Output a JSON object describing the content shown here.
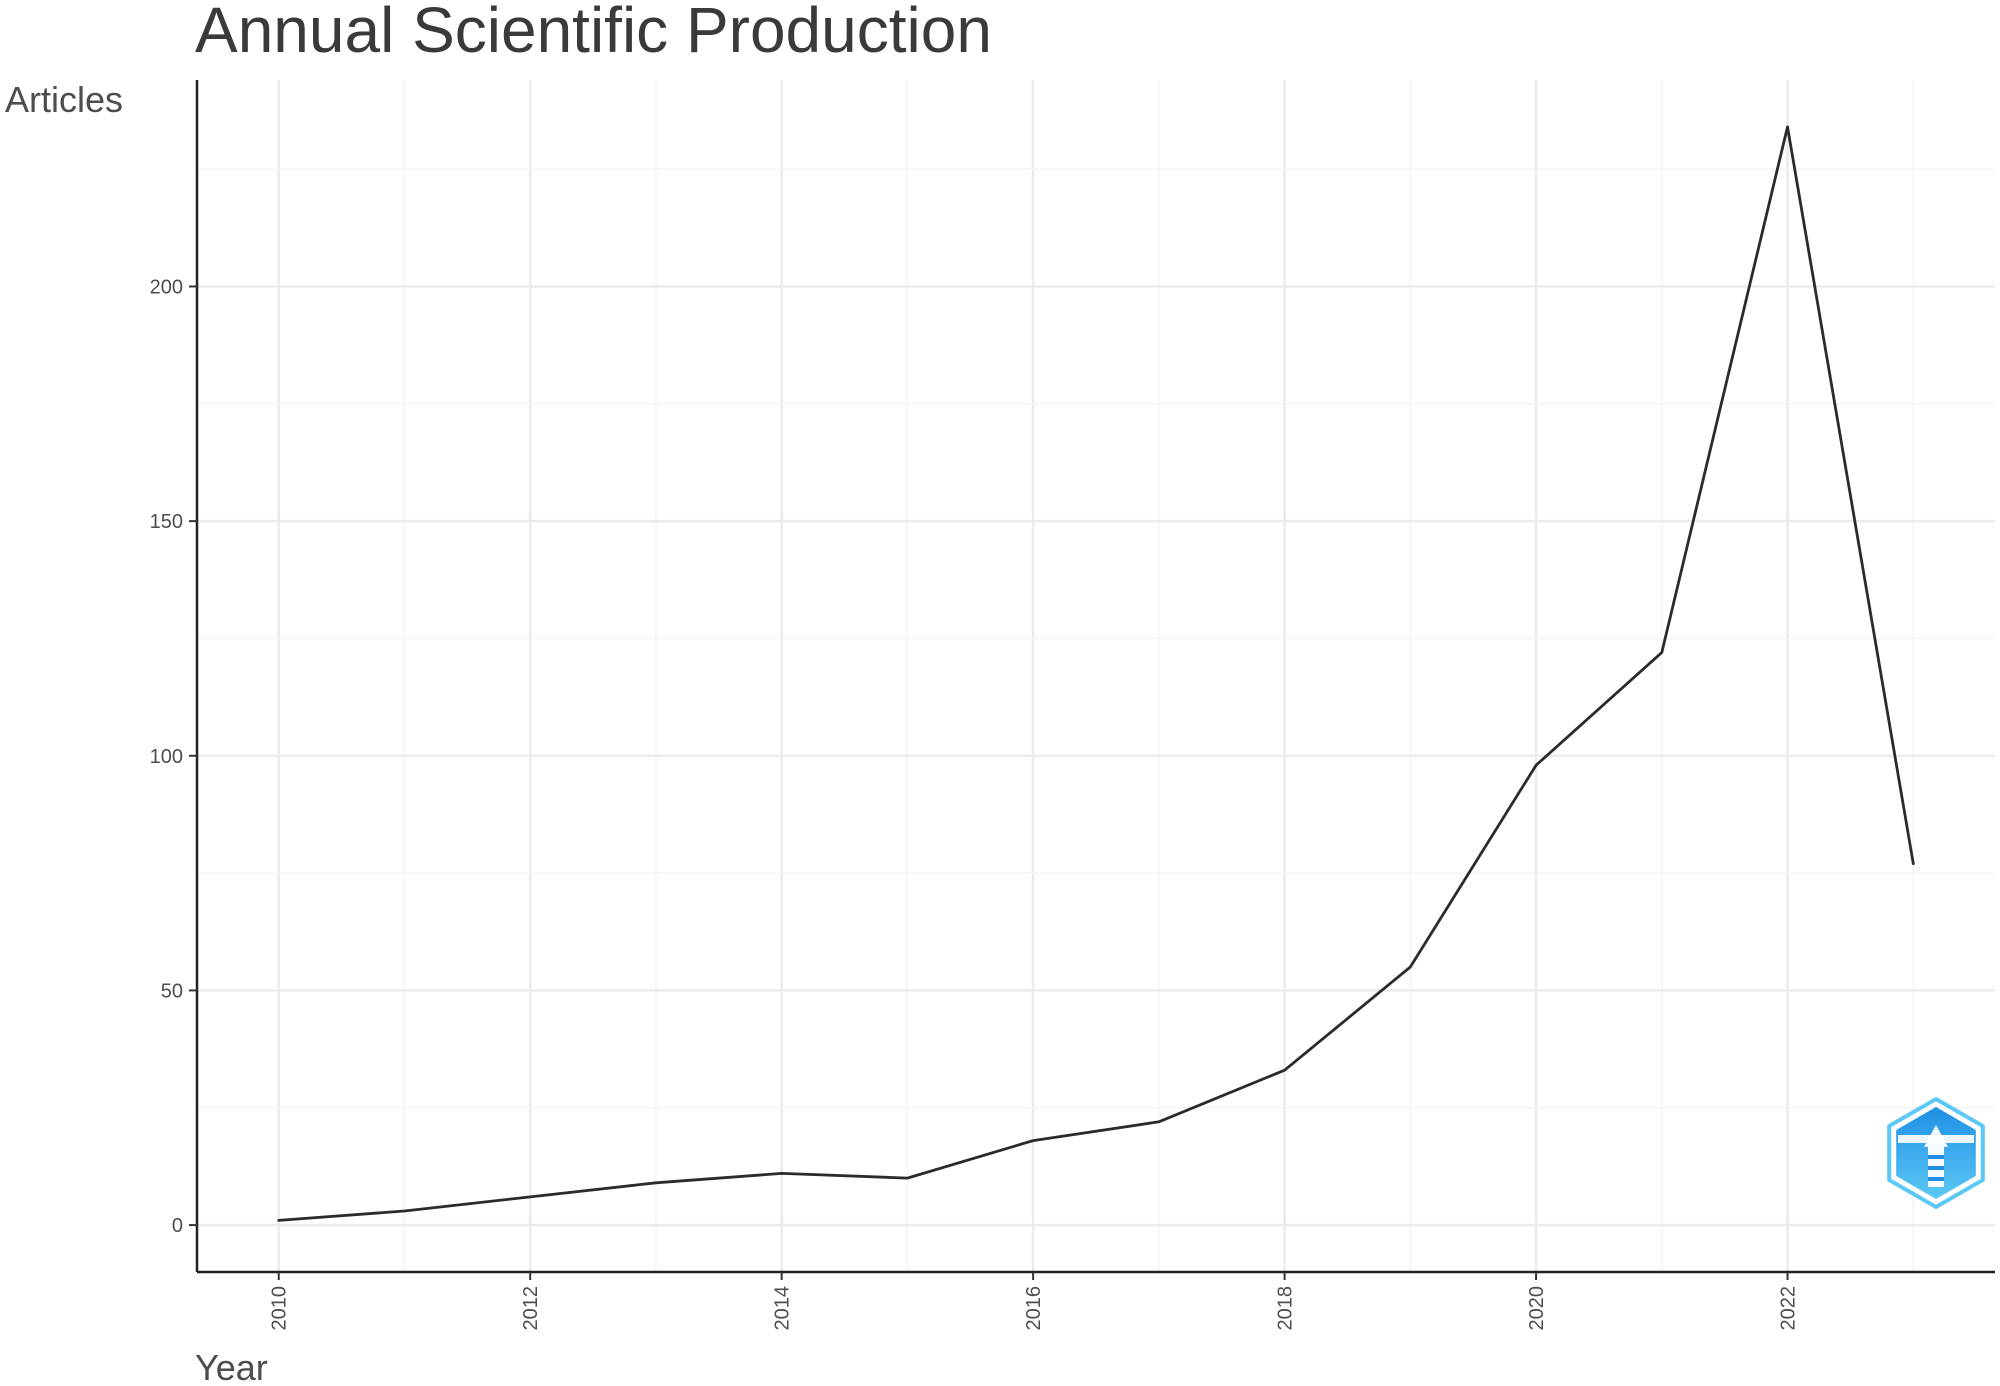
{
  "chart_data": {
    "type": "line",
    "title": "Annual Scientific Production",
    "xlabel": "Year",
    "ylabel": "Articles",
    "x": [
      2010,
      2011,
      2012,
      2013,
      2014,
      2015,
      2016,
      2017,
      2018,
      2019,
      2020,
      2021,
      2022,
      2023
    ],
    "series": [
      {
        "values": [
          1,
          3,
          6,
          9,
          11,
          10,
          18,
          22,
          33,
          55,
          98,
          122,
          234,
          77
        ],
        "color": "#2b2b2b"
      }
    ],
    "xlim": [
      2009.35,
      2023.65
    ],
    "ylim": [
      -10,
      244
    ],
    "x_ticks": [
      "2010",
      "2012",
      "2014",
      "2016",
      "2018",
      "2020",
      "2022"
    ],
    "y_ticks": [
      "0",
      "50",
      "100",
      "150",
      "200"
    ],
    "x_tick_rotation": "vertical",
    "grid": true,
    "legend": "none",
    "logo_icon": "bibliometrix-hexagon-icon",
    "logo_colors": [
      "#1f8fe6",
      "#5cc8f5"
    ]
  }
}
